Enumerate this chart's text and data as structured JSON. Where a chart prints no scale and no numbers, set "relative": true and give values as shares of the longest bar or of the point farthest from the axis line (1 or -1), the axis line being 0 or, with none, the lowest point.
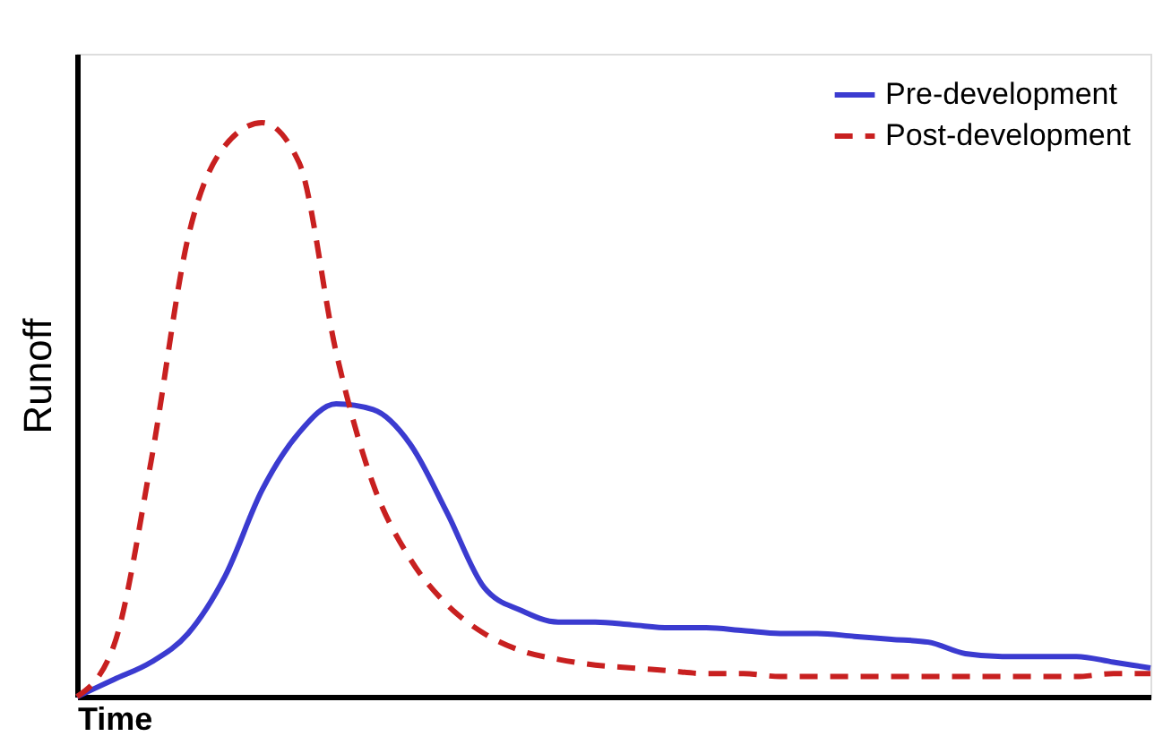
{
  "chart_data": {
    "type": "line",
    "relative": true,
    "xlabel": "Time",
    "ylabel": "Runoff",
    "legend": "top right",
    "marker": "none",
    "grid": false,
    "categories": [
      null,
      null,
      null,
      null,
      null,
      null,
      null,
      null,
      null,
      null,
      null,
      null,
      null,
      null,
      null,
      null,
      null,
      null,
      null,
      null,
      null,
      null,
      null,
      null,
      null,
      null,
      null,
      null,
      null,
      null
    ],
    "series": [
      {
        "name": "Pre-development",
        "color": "#3b3bd0",
        "line_style": "solid",
        "values": [
          0,
          0.03,
          0.06,
          0.11,
          0.21,
          0.36,
          0.46,
          0.51,
          0.5,
          0.44,
          0.32,
          0.19,
          0.15,
          0.13,
          0.13,
          0.125,
          0.12,
          0.12,
          0.115,
          0.11,
          0.11,
          0.105,
          0.1,
          0.095,
          0.075,
          0.07,
          0.07,
          0.07,
          0.06,
          0.05
        ]
      },
      {
        "name": "Post-development",
        "color": "#c82020",
        "line_style": "dashed",
        "values": [
          0,
          0.09,
          0.41,
          0.8,
          0.96,
          1.0,
          0.93,
          0.6,
          0.37,
          0.24,
          0.16,
          0.11,
          0.08,
          0.065,
          0.055,
          0.05,
          0.045,
          0.04,
          0.04,
          0.035,
          0.035,
          0.035,
          0.035,
          0.035,
          0.035,
          0.035,
          0.035,
          0.035,
          0.04,
          0.04
        ]
      }
    ]
  }
}
